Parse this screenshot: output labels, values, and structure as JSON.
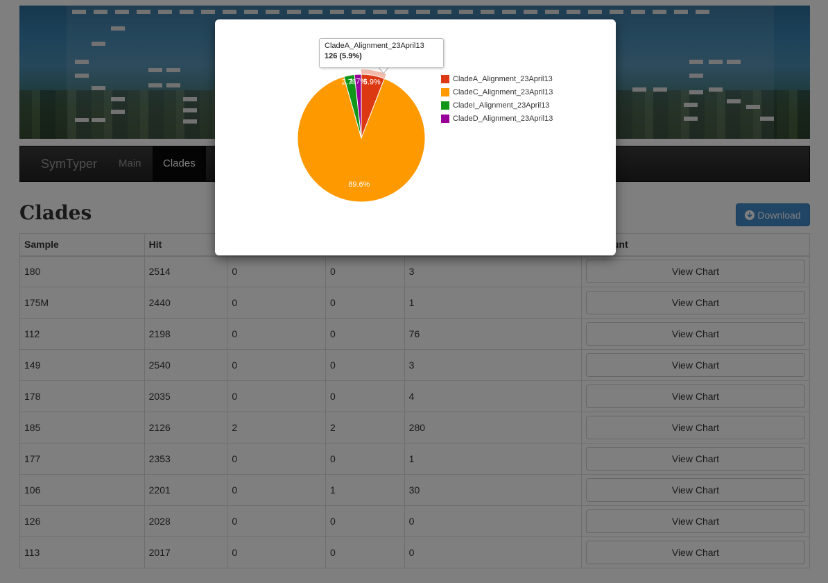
{
  "navbar": {
    "brand": "SymTyper",
    "links": [
      {
        "label": "Main"
      },
      {
        "label": "Clades"
      }
    ]
  },
  "page": {
    "title": "Clades",
    "download_label": "Download",
    "download_icon": "download-circle-icon"
  },
  "table": {
    "headers": [
      "Sample",
      "Hit",
      "",
      "",
      "",
      "ed Count"
    ],
    "button_label": "View Chart",
    "rows": [
      [
        "180",
        "2514",
        "0",
        "0",
        "3"
      ],
      [
        "175M",
        "2440",
        "0",
        "0",
        "1"
      ],
      [
        "112",
        "2198",
        "0",
        "0",
        "76"
      ],
      [
        "149",
        "2540",
        "0",
        "0",
        "3"
      ],
      [
        "178",
        "2035",
        "0",
        "0",
        "4"
      ],
      [
        "185",
        "2126",
        "2",
        "2",
        "280"
      ],
      [
        "177",
        "2353",
        "0",
        "0",
        "1"
      ],
      [
        "106",
        "2201",
        "0",
        "1",
        "30"
      ],
      [
        "126",
        "2028",
        "0",
        "0",
        "0"
      ],
      [
        "113",
        "2017",
        "0",
        "0",
        "0"
      ]
    ]
  },
  "modal": {
    "tooltip": {
      "label": "CladeA_Alignment_23April13",
      "value": "126 (5.9%)"
    }
  },
  "chart_data": {
    "type": "pie",
    "title": "",
    "series": [
      {
        "name": "CladeA_Alignment_23April13",
        "value": 5.9,
        "color": "#dc3912"
      },
      {
        "name": "CladeC_Alignment_23April13",
        "value": 89.6,
        "color": "#ff9900"
      },
      {
        "name": "CladeI_Alignment_23April13",
        "value": 2.7,
        "color": "#109618"
      },
      {
        "name": "CladeD_Alignment_23April13",
        "value": 1.7,
        "color": "#990099"
      }
    ],
    "labels": [
      "5.9%",
      "89.6%",
      "2.7%",
      "1.7%"
    ],
    "legend": "right",
    "highlighted": "CladeA_Alignment_23April13"
  }
}
